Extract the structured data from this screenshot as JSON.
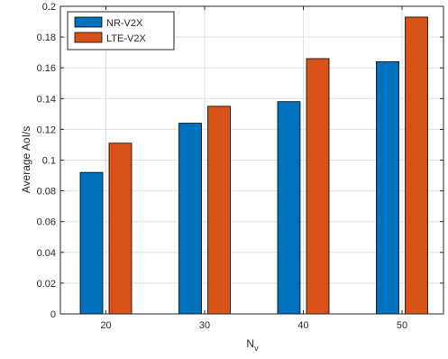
{
  "chart_data": {
    "type": "bar",
    "categories": [
      "20",
      "30",
      "40",
      "50"
    ],
    "series": [
      {
        "name": "NR-V2X",
        "values": [
          0.092,
          0.124,
          0.138,
          0.164
        ],
        "color": "#0072BD"
      },
      {
        "name": "LTE-V2X",
        "values": [
          0.111,
          0.135,
          0.166,
          0.193
        ],
        "color": "#D95319"
      }
    ],
    "title": "",
    "xlabel": "N",
    "xlabel_subscript": "v",
    "ylabel": "Average AoI/s",
    "ylim": [
      0,
      0.2
    ],
    "yticks": [
      "0",
      "0.02",
      "0.04",
      "0.06",
      "0.08",
      "0.1",
      "0.12",
      "0.14",
      "0.16",
      "0.18",
      "0.2"
    ],
    "grid": true,
    "legend_position": "top-left"
  }
}
